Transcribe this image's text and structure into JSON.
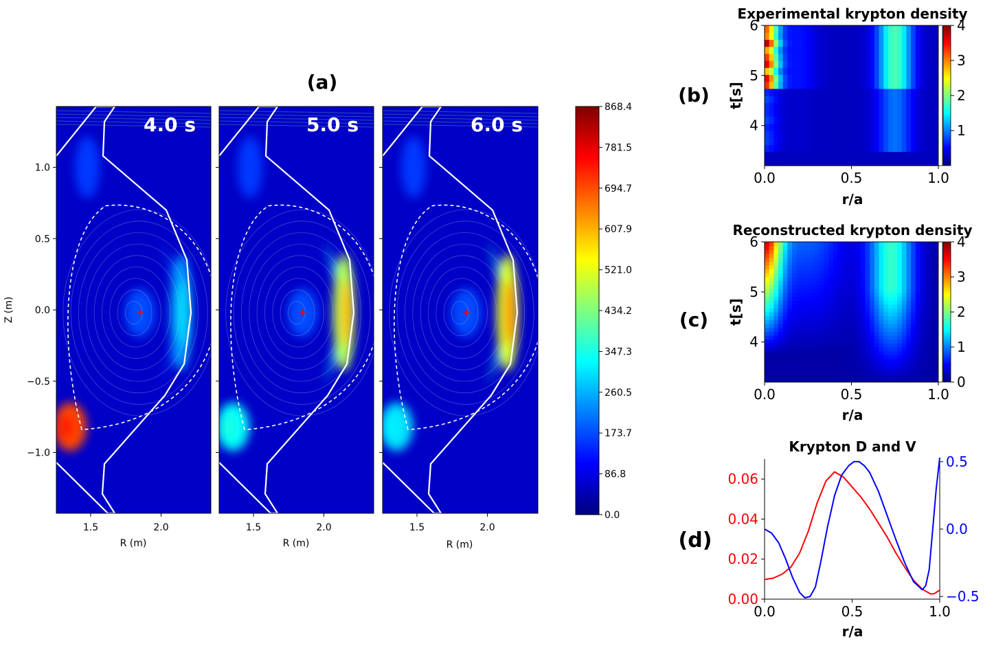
{
  "panel_labels": {
    "a": "(a)",
    "b": "(b)",
    "c": "(c)",
    "d": "(d)"
  },
  "colors": {
    "jet": [
      "#00007f",
      "#0000ff",
      "#007fff",
      "#00ffff",
      "#7fff7f",
      "#ffff00",
      "#ff7f00",
      "#ff0000",
      "#7f0000"
    ],
    "d_line": "#ff0000",
    "v_line": "#0000ff",
    "separatrix": "#ffffff",
    "vessel": "#ffffff",
    "axis_marker": "#ff0000"
  },
  "chart_data": [
    {
      "id": "a",
      "type": "heatmap",
      "title": "(a)",
      "xlabel": "R (m)",
      "ylabel": "Z (m)",
      "xticks": [
        "1.5",
        "2.0"
      ],
      "yticks": [
        "1.0",
        "0.5",
        "0.0",
        "−0.5",
        "−1.0"
      ],
      "xlim": [
        1.25,
        2.35
      ],
      "ylim": [
        -1.43,
        1.43
      ],
      "frames": [
        {
          "label": "4.0 s",
          "peak_value": 300,
          "magnetic_axis": [
            1.85,
            -0.02
          ],
          "divertor_peak": 700
        },
        {
          "label": "5.0 s",
          "peak_value": 600,
          "magnetic_axis": [
            1.85,
            -0.02
          ],
          "divertor_peak": 330
        },
        {
          "label": "6.0 s",
          "peak_value": 640,
          "magnetic_axis": [
            1.85,
            -0.02
          ],
          "divertor_peak": 300
        }
      ],
      "colorbar": {
        "min": 0.0,
        "max": 868.4,
        "ticks": [
          "868.4",
          "781.5",
          "694.7",
          "607.9",
          "521.0",
          "434.2",
          "347.3",
          "260.5",
          "173.7",
          "86.8",
          "0.0"
        ]
      }
    },
    {
      "id": "b",
      "type": "heatmap",
      "title": "Experimental krypton density",
      "xlabel": "r/a",
      "ylabel": "t[s]",
      "xticks": [
        "0.0",
        "0.5",
        "1.0"
      ],
      "yticks": [
        "6",
        "5",
        "4"
      ],
      "xlim": [
        0.0,
        1.0
      ],
      "ylim": [
        3.2,
        6.0
      ],
      "colorbar": {
        "min": 0,
        "max": 4,
        "ticks": [
          "4",
          "3",
          "2",
          "1"
        ]
      }
    },
    {
      "id": "c",
      "type": "heatmap",
      "title": "Reconstructed krypton density",
      "xlabel": "r/a",
      "ylabel": "t[s]",
      "xticks": [
        "0.0",
        "0.5",
        "1.0"
      ],
      "yticks": [
        "6",
        "5",
        "4"
      ],
      "xlim": [
        0.0,
        1.0
      ],
      "ylim": [
        3.2,
        6.0
      ],
      "colorbar": {
        "min": 0,
        "max": 4,
        "ticks": [
          "4",
          "3",
          "2",
          "1",
          "0"
        ]
      }
    },
    {
      "id": "d",
      "type": "line",
      "title": "Krypton D and V",
      "xlabel": "r/a",
      "xticks": [
        "0.0",
        "0.5",
        "1.0"
      ],
      "xlim": [
        0.0,
        1.0
      ],
      "y_left": {
        "ticks": [
          "0.06",
          "0.04",
          "0.02",
          "0.00"
        ],
        "lim": [
          0.0,
          0.07
        ],
        "color": "#ff0000"
      },
      "y_right": {
        "ticks": [
          "0.5",
          "0.0",
          "−0.5"
        ],
        "lim": [
          -0.52,
          0.52
        ],
        "color": "#0000ff"
      },
      "series": [
        {
          "axis": "left",
          "color": "#ff0000",
          "x": [
            0.0,
            0.05,
            0.1,
            0.15,
            0.2,
            0.25,
            0.3,
            0.35,
            0.4,
            0.45,
            0.5,
            0.55,
            0.6,
            0.65,
            0.7,
            0.75,
            0.8,
            0.85,
            0.9,
            0.95,
            0.97,
            1.0
          ],
          "y": [
            0.0098,
            0.0105,
            0.0125,
            0.016,
            0.023,
            0.034,
            0.048,
            0.059,
            0.0636,
            0.061,
            0.056,
            0.051,
            0.045,
            0.038,
            0.031,
            0.023,
            0.016,
            0.0095,
            0.005,
            0.0025,
            0.0028,
            0.0045
          ]
        },
        {
          "axis": "right",
          "color": "#0000ff",
          "x": [
            0.0,
            0.04,
            0.08,
            0.12,
            0.16,
            0.2,
            0.23,
            0.26,
            0.29,
            0.32,
            0.36,
            0.4,
            0.44,
            0.48,
            0.51,
            0.54,
            0.57,
            0.6,
            0.65,
            0.7,
            0.75,
            0.8,
            0.85,
            0.9,
            0.92,
            0.94,
            0.96,
            0.98,
            1.0
          ],
          "y": [
            0.0,
            -0.03,
            -0.1,
            -0.22,
            -0.36,
            -0.47,
            -0.51,
            -0.5,
            -0.43,
            -0.25,
            0.02,
            0.25,
            0.4,
            0.47,
            0.5,
            0.5,
            0.47,
            0.42,
            0.28,
            0.1,
            -0.08,
            -0.25,
            -0.39,
            -0.45,
            -0.42,
            -0.3,
            0.0,
            0.3,
            0.53
          ]
        }
      ]
    }
  ]
}
